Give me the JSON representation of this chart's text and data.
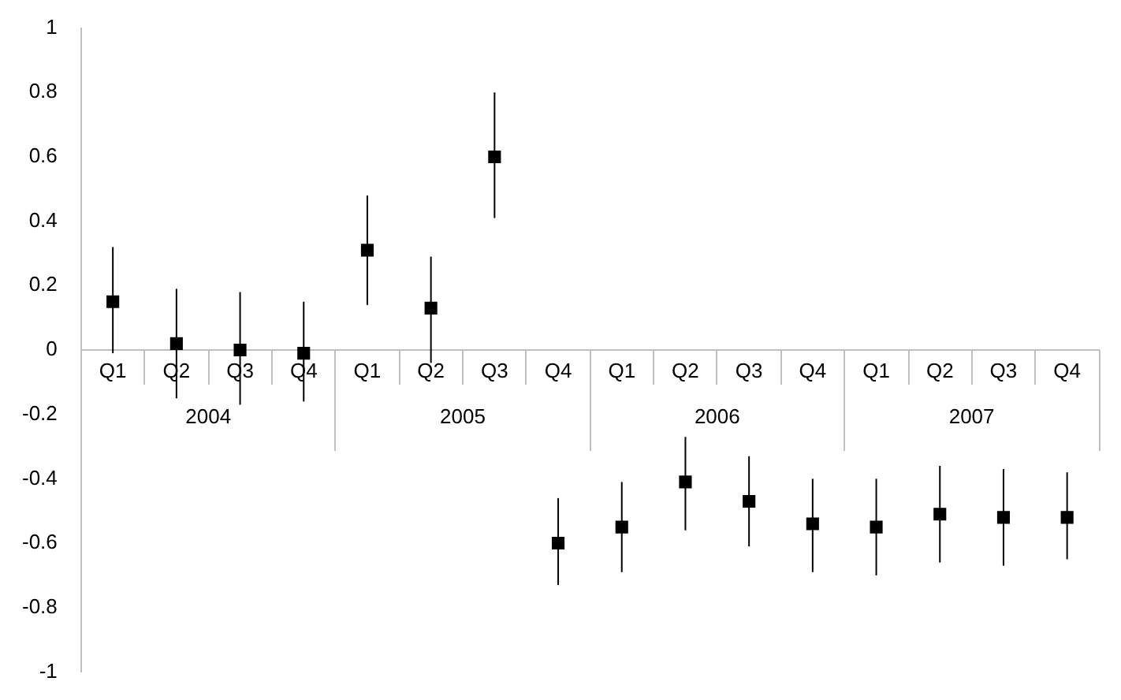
{
  "chart_data": {
    "type": "scatter",
    "categories": [
      "Q1",
      "Q2",
      "Q3",
      "Q4",
      "Q1",
      "Q2",
      "Q3",
      "Q4",
      "Q1",
      "Q2",
      "Q3",
      "Q4",
      "Q1",
      "Q2",
      "Q3",
      "Q4"
    ],
    "series": [
      {
        "color": "#000000",
        "values": [
          0.15,
          0.02,
          0.0,
          -0.01,
          0.31,
          0.13,
          0.6,
          -0.6,
          -0.55,
          -0.41,
          -0.47,
          -0.54,
          -0.55,
          -0.51,
          -0.52,
          -0.52
        ],
        "errors": [
          [
            -0.01,
            0.32
          ],
          [
            -0.15,
            0.19
          ],
          [
            -0.17,
            0.18
          ],
          [
            -0.16,
            0.15
          ],
          [
            0.14,
            0.48
          ],
          [
            -0.04,
            0.29
          ],
          [
            0.41,
            0.8
          ],
          [
            -0.73,
            -0.46
          ],
          [
            -0.69,
            -0.41
          ],
          [
            -0.56,
            -0.27
          ],
          [
            -0.61,
            -0.33
          ],
          [
            -0.69,
            -0.4
          ],
          [
            -0.7,
            -0.4
          ],
          [
            -0.66,
            -0.36
          ],
          [
            -0.67,
            -0.37
          ],
          [
            -0.65,
            -0.38
          ]
        ]
      }
    ],
    "annotations": [
      "2004",
      "2005",
      "2006",
      "2007"
    ],
    "ylim": [
      -1,
      1
    ],
    "yticks": [
      -1,
      -0.8,
      -0.6,
      -0.4,
      -0.2,
      0,
      0.2,
      0.4,
      0.6,
      0.8,
      1
    ],
    "marker": "square",
    "grid": false,
    "legend": false
  }
}
